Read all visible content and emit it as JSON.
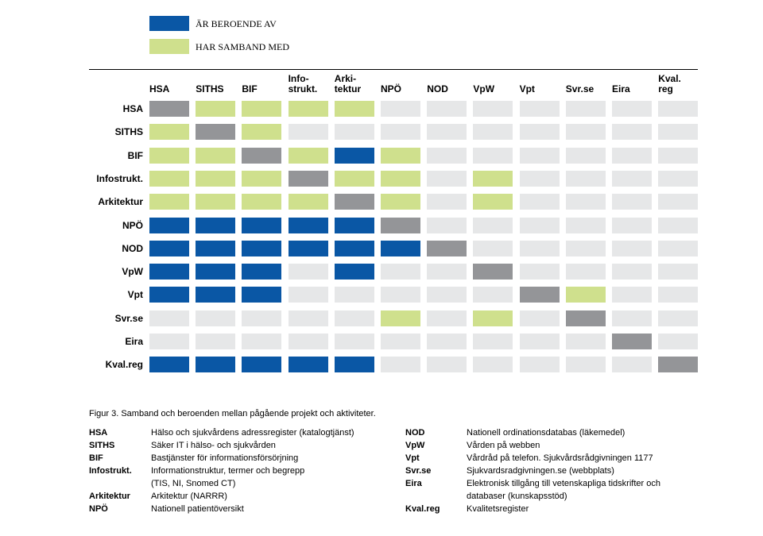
{
  "colors": {
    "depends_on": "#0a57a5",
    "related_to": "#cfe08d",
    "self": "#949598",
    "none": "#e6e7e8"
  },
  "legend": [
    {
      "label": "ÄR BEROENDE AV",
      "color": "#0a57a5"
    },
    {
      "label": "HAR SAMBAND MED",
      "color": "#cfe08d"
    }
  ],
  "chart_data": {
    "type": "heatmap",
    "columns": [
      "HSA",
      "SITHS",
      "BIF",
      "Info-\nstrukt.",
      "Arki-\ntektur",
      "NPÖ",
      "NOD",
      "VpW",
      "Vpt",
      "Svr.se",
      "Eira",
      "Kval.\nreg"
    ],
    "rows": [
      "HSA",
      "SITHS",
      "BIF",
      "Infostrukt.",
      "Arkitektur",
      "NPÖ",
      "NOD",
      "VpW",
      "Vpt",
      "Svr.se",
      "Eira",
      "Kval.reg"
    ],
    "value_legend": {
      "0": "none",
      "1": "HAR SAMBAND MED",
      "2": "ÄR BEROENDE AV",
      "3": "self"
    },
    "matrix": [
      [
        3,
        1,
        1,
        1,
        1,
        0,
        0,
        0,
        0,
        0,
        0,
        0
      ],
      [
        1,
        3,
        1,
        0,
        0,
        0,
        0,
        0,
        0,
        0,
        0,
        0
      ],
      [
        1,
        1,
        3,
        1,
        2,
        1,
        0,
        0,
        0,
        0,
        0,
        0
      ],
      [
        1,
        1,
        1,
        3,
        1,
        1,
        0,
        1,
        0,
        0,
        0,
        0
      ],
      [
        1,
        1,
        1,
        1,
        3,
        1,
        0,
        1,
        0,
        0,
        0,
        0
      ],
      [
        2,
        2,
        2,
        2,
        2,
        3,
        0,
        0,
        0,
        0,
        0,
        0
      ],
      [
        2,
        2,
        2,
        2,
        2,
        2,
        3,
        0,
        0,
        0,
        0,
        0
      ],
      [
        2,
        2,
        2,
        0,
        2,
        0,
        0,
        3,
        0,
        0,
        0,
        0
      ],
      [
        2,
        2,
        2,
        0,
        0,
        0,
        0,
        0,
        3,
        1,
        0,
        0
      ],
      [
        0,
        0,
        0,
        0,
        0,
        1,
        0,
        1,
        0,
        3,
        0,
        0
      ],
      [
        0,
        0,
        0,
        0,
        0,
        0,
        0,
        0,
        0,
        0,
        3,
        0
      ],
      [
        2,
        2,
        2,
        2,
        2,
        0,
        0,
        0,
        0,
        0,
        0,
        3
      ]
    ]
  },
  "caption": "Figur 3. Samband och beroenden mellan pågående projekt och aktiviteter.",
  "glossary_left": [
    {
      "abbr": "HSA",
      "desc": "Hälso och sjukvårdens adressregister (katalogtjänst)"
    },
    {
      "abbr": "SITHS",
      "desc": "Säker IT i hälso- och sjukvården"
    },
    {
      "abbr": "BIF",
      "desc": "Bastjänster för informationsförsörjning"
    },
    {
      "abbr": "Infostrukt.",
      "desc": "Informationstruktur, termer och begrepp\n(TIS, NI, Snomed CT)"
    },
    {
      "abbr": "Arkitektur",
      "desc": "Arkitektur (NARRR)"
    },
    {
      "abbr": "NPÖ",
      "desc": "Nationell patientöversikt"
    }
  ],
  "glossary_right": [
    {
      "abbr": "NOD",
      "desc": "Nationell ordinationsdatabas (läkemedel)"
    },
    {
      "abbr": "VpW",
      "desc": "Vården på webben"
    },
    {
      "abbr": "Vpt",
      "desc": "Vårdråd på telefon. Sjukvårdsrådgivningen 1177"
    },
    {
      "abbr": "Svr.se",
      "desc": "Sjukvardsradgivningen.se (webbplats)"
    },
    {
      "abbr": "Eira",
      "desc": "Elektronisk tillgång till vetenskapliga tidskrifter och\ndatabaser (kunskapsstöd)"
    },
    {
      "abbr": "Kval.reg",
      "desc": "Kvalitetsregister"
    }
  ]
}
